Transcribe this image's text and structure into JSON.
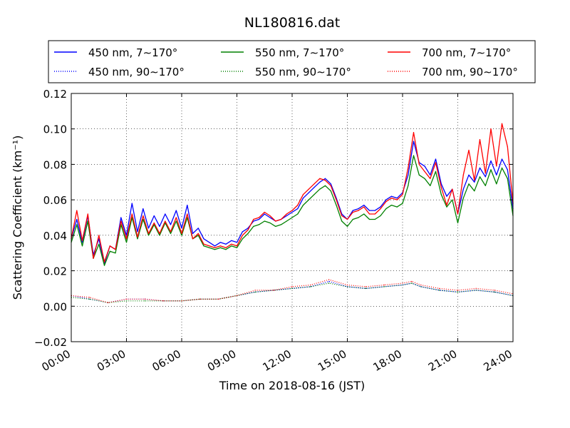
{
  "chart_data": {
    "type": "line",
    "title": "NL180816.dat",
    "xlabel": "Time on 2018-08-16 (JST)",
    "ylabel": "Scattering Coefficient (km⁻¹)",
    "x_unit": "hours",
    "xlim": [
      0,
      24
    ],
    "ylim": [
      -0.02,
      0.12
    ],
    "x_ticks": [
      "00:00",
      "03:00",
      "06:00",
      "09:00",
      "12:00",
      "15:00",
      "18:00",
      "21:00",
      "24:00"
    ],
    "y_ticks": [
      "−0.02",
      "0.00",
      "0.02",
      "0.04",
      "0.06",
      "0.08",
      "0.10",
      "0.12"
    ],
    "grid": true,
    "legend_position": "top, above plot, 3 columns",
    "series": [
      {
        "name": "450 nm, 7∼170°",
        "color": "#0000ff",
        "style": "solid",
        "x": [
          0.0,
          0.3,
          0.6,
          0.9,
          1.2,
          1.5,
          1.8,
          2.1,
          2.4,
          2.7,
          3.0,
          3.3,
          3.6,
          3.9,
          4.2,
          4.5,
          4.8,
          5.1,
          5.4,
          5.7,
          6.0,
          6.3,
          6.6,
          6.9,
          7.2,
          7.5,
          7.8,
          8.1,
          8.4,
          8.7,
          9.0,
          9.3,
          9.6,
          9.9,
          10.2,
          10.5,
          10.8,
          11.1,
          11.4,
          11.7,
          12.0,
          12.3,
          12.6,
          12.9,
          13.2,
          13.5,
          13.8,
          14.1,
          14.4,
          14.7,
          15.0,
          15.3,
          15.6,
          15.9,
          16.2,
          16.5,
          16.8,
          17.1,
          17.4,
          17.7,
          18.0,
          18.3,
          18.6,
          18.9,
          19.2,
          19.5,
          19.8,
          20.1,
          20.4,
          20.7,
          21.0,
          21.3,
          21.6,
          21.9,
          22.2,
          22.5,
          22.8,
          23.1,
          23.4,
          23.7,
          24.0
        ],
        "y": [
          0.038,
          0.049,
          0.036,
          0.051,
          0.029,
          0.038,
          0.024,
          0.034,
          0.032,
          0.05,
          0.04,
          0.058,
          0.042,
          0.055,
          0.044,
          0.051,
          0.045,
          0.052,
          0.046,
          0.054,
          0.044,
          0.057,
          0.041,
          0.044,
          0.038,
          0.036,
          0.034,
          0.036,
          0.035,
          0.037,
          0.036,
          0.042,
          0.044,
          0.048,
          0.049,
          0.052,
          0.05,
          0.048,
          0.049,
          0.051,
          0.053,
          0.055,
          0.061,
          0.064,
          0.067,
          0.07,
          0.072,
          0.069,
          0.061,
          0.052,
          0.049,
          0.054,
          0.055,
          0.057,
          0.054,
          0.054,
          0.056,
          0.06,
          0.062,
          0.061,
          0.064,
          0.074,
          0.093,
          0.081,
          0.079,
          0.074,
          0.083,
          0.069,
          0.062,
          0.066,
          0.052,
          0.066,
          0.074,
          0.07,
          0.078,
          0.073,
          0.082,
          0.074,
          0.083,
          0.077,
          0.055
        ]
      },
      {
        "name": "550 nm, 7∼170°",
        "color": "#008000",
        "style": "solid",
        "x": [
          0.0,
          0.3,
          0.6,
          0.9,
          1.2,
          1.5,
          1.8,
          2.1,
          2.4,
          2.7,
          3.0,
          3.3,
          3.6,
          3.9,
          4.2,
          4.5,
          4.8,
          5.1,
          5.4,
          5.7,
          6.0,
          6.3,
          6.6,
          6.9,
          7.2,
          7.5,
          7.8,
          8.1,
          8.4,
          8.7,
          9.0,
          9.3,
          9.6,
          9.9,
          10.2,
          10.5,
          10.8,
          11.1,
          11.4,
          11.7,
          12.0,
          12.3,
          12.6,
          12.9,
          13.2,
          13.5,
          13.8,
          14.1,
          14.4,
          14.7,
          15.0,
          15.3,
          15.6,
          15.9,
          16.2,
          16.5,
          16.8,
          17.1,
          17.4,
          17.7,
          18.0,
          18.3,
          18.6,
          18.9,
          19.2,
          19.5,
          19.8,
          20.1,
          20.4,
          20.7,
          21.0,
          21.3,
          21.6,
          21.9,
          22.2,
          22.5,
          22.8,
          23.1,
          23.4,
          23.7,
          24.0
        ],
        "y": [
          0.036,
          0.046,
          0.034,
          0.048,
          0.027,
          0.035,
          0.023,
          0.031,
          0.03,
          0.046,
          0.036,
          0.05,
          0.038,
          0.049,
          0.04,
          0.046,
          0.04,
          0.047,
          0.041,
          0.048,
          0.04,
          0.05,
          0.038,
          0.04,
          0.034,
          0.033,
          0.032,
          0.033,
          0.032,
          0.034,
          0.033,
          0.038,
          0.041,
          0.045,
          0.046,
          0.048,
          0.047,
          0.045,
          0.046,
          0.048,
          0.05,
          0.052,
          0.057,
          0.06,
          0.063,
          0.066,
          0.068,
          0.065,
          0.057,
          0.048,
          0.045,
          0.049,
          0.05,
          0.052,
          0.049,
          0.049,
          0.051,
          0.055,
          0.057,
          0.056,
          0.058,
          0.068,
          0.085,
          0.074,
          0.072,
          0.068,
          0.076,
          0.063,
          0.056,
          0.06,
          0.047,
          0.061,
          0.069,
          0.065,
          0.073,
          0.068,
          0.077,
          0.069,
          0.078,
          0.072,
          0.051
        ]
      },
      {
        "name": "700 nm, 7∼170°",
        "color": "#ff0000",
        "style": "solid",
        "x": [
          0.0,
          0.3,
          0.6,
          0.9,
          1.2,
          1.5,
          1.8,
          2.1,
          2.4,
          2.7,
          3.0,
          3.3,
          3.6,
          3.9,
          4.2,
          4.5,
          4.8,
          5.1,
          5.4,
          5.7,
          6.0,
          6.3,
          6.6,
          6.9,
          7.2,
          7.5,
          7.8,
          8.1,
          8.4,
          8.7,
          9.0,
          9.3,
          9.6,
          9.9,
          10.2,
          10.5,
          10.8,
          11.1,
          11.4,
          11.7,
          12.0,
          12.3,
          12.6,
          12.9,
          13.2,
          13.5,
          13.8,
          14.1,
          14.4,
          14.7,
          15.0,
          15.3,
          15.6,
          15.9,
          16.2,
          16.5,
          16.8,
          17.1,
          17.4,
          17.7,
          18.0,
          18.3,
          18.6,
          18.9,
          19.2,
          19.5,
          19.8,
          20.1,
          20.4,
          20.7,
          21.0,
          21.3,
          21.6,
          21.9,
          22.2,
          22.5,
          22.8,
          23.1,
          23.4,
          23.7,
          24.0
        ],
        "y": [
          0.038,
          0.054,
          0.037,
          0.052,
          0.027,
          0.04,
          0.025,
          0.034,
          0.032,
          0.048,
          0.038,
          0.052,
          0.039,
          0.051,
          0.041,
          0.047,
          0.041,
          0.048,
          0.042,
          0.05,
          0.041,
          0.052,
          0.038,
          0.041,
          0.035,
          0.034,
          0.033,
          0.034,
          0.033,
          0.035,
          0.034,
          0.04,
          0.043,
          0.049,
          0.05,
          0.053,
          0.051,
          0.048,
          0.049,
          0.052,
          0.054,
          0.057,
          0.063,
          0.066,
          0.069,
          0.072,
          0.071,
          0.068,
          0.06,
          0.051,
          0.049,
          0.053,
          0.054,
          0.056,
          0.052,
          0.052,
          0.055,
          0.059,
          0.061,
          0.06,
          0.063,
          0.078,
          0.098,
          0.08,
          0.076,
          0.072,
          0.081,
          0.067,
          0.057,
          0.066,
          0.052,
          0.074,
          0.088,
          0.071,
          0.094,
          0.075,
          0.1,
          0.079,
          0.103,
          0.09,
          0.058
        ]
      },
      {
        "name": "450 nm, 90∼170°",
        "color": "#0000ff",
        "style": "dotted",
        "x": [
          0.0,
          1.0,
          2.0,
          3.0,
          4.0,
          5.0,
          6.0,
          7.0,
          8.0,
          9.0,
          10.0,
          11.0,
          12.0,
          13.0,
          14.0,
          15.0,
          16.0,
          17.0,
          18.0,
          18.5,
          19.0,
          20.0,
          21.0,
          22.0,
          23.0,
          24.0
        ],
        "y": [
          0.006,
          0.004,
          0.002,
          0.004,
          0.004,
          0.003,
          0.003,
          0.004,
          0.004,
          0.006,
          0.008,
          0.009,
          0.01,
          0.011,
          0.014,
          0.011,
          0.01,
          0.011,
          0.012,
          0.013,
          0.011,
          0.009,
          0.008,
          0.009,
          0.008,
          0.006
        ]
      },
      {
        "name": "550 nm, 90∼170°",
        "color": "#008000",
        "style": "dotted",
        "x": [
          0.0,
          1.0,
          2.0,
          3.0,
          4.0,
          5.0,
          6.0,
          7.0,
          8.0,
          9.0,
          10.0,
          11.0,
          12.0,
          13.0,
          14.0,
          15.0,
          16.0,
          17.0,
          18.0,
          18.5,
          19.0,
          20.0,
          21.0,
          22.0,
          23.0,
          24.0
        ],
        "y": [
          0.005,
          0.004,
          0.002,
          0.003,
          0.003,
          0.003,
          0.003,
          0.004,
          0.004,
          0.006,
          0.008,
          0.009,
          0.01,
          0.011,
          0.013,
          0.011,
          0.01,
          0.011,
          0.012,
          0.013,
          0.011,
          0.009,
          0.008,
          0.009,
          0.008,
          0.006
        ]
      },
      {
        "name": "700 nm, 90∼170°",
        "color": "#ff0000",
        "style": "dotted",
        "x": [
          0.0,
          1.0,
          2.0,
          3.0,
          4.0,
          5.0,
          6.0,
          7.0,
          8.0,
          9.0,
          10.0,
          11.0,
          12.0,
          13.0,
          14.0,
          15.0,
          16.0,
          17.0,
          18.0,
          18.5,
          19.0,
          20.0,
          21.0,
          22.0,
          23.0,
          24.0
        ],
        "y": [
          0.006,
          0.005,
          0.002,
          0.004,
          0.004,
          0.003,
          0.003,
          0.004,
          0.004,
          0.006,
          0.009,
          0.009,
          0.011,
          0.012,
          0.015,
          0.012,
          0.011,
          0.012,
          0.013,
          0.014,
          0.012,
          0.01,
          0.009,
          0.01,
          0.009,
          0.007
        ]
      }
    ],
    "legend_order": [
      0,
      1,
      2,
      3,
      4,
      5
    ]
  }
}
